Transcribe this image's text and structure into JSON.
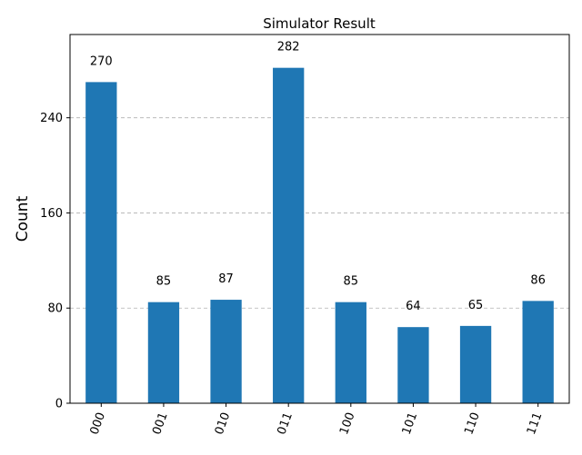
{
  "chart_data": {
    "type": "bar",
    "title": "Simulator Result",
    "xlabel": "",
    "ylabel": "Count",
    "categories": [
      "000",
      "001",
      "010",
      "011",
      "100",
      "101",
      "110",
      "111"
    ],
    "values": [
      270,
      85,
      87,
      282,
      85,
      64,
      65,
      86
    ],
    "ylim": [
      0,
      310
    ],
    "yticks": [
      0,
      80,
      160,
      240
    ],
    "grid": "y-dashed",
    "bar_color": "#1f77b4",
    "data_labels": true
  }
}
